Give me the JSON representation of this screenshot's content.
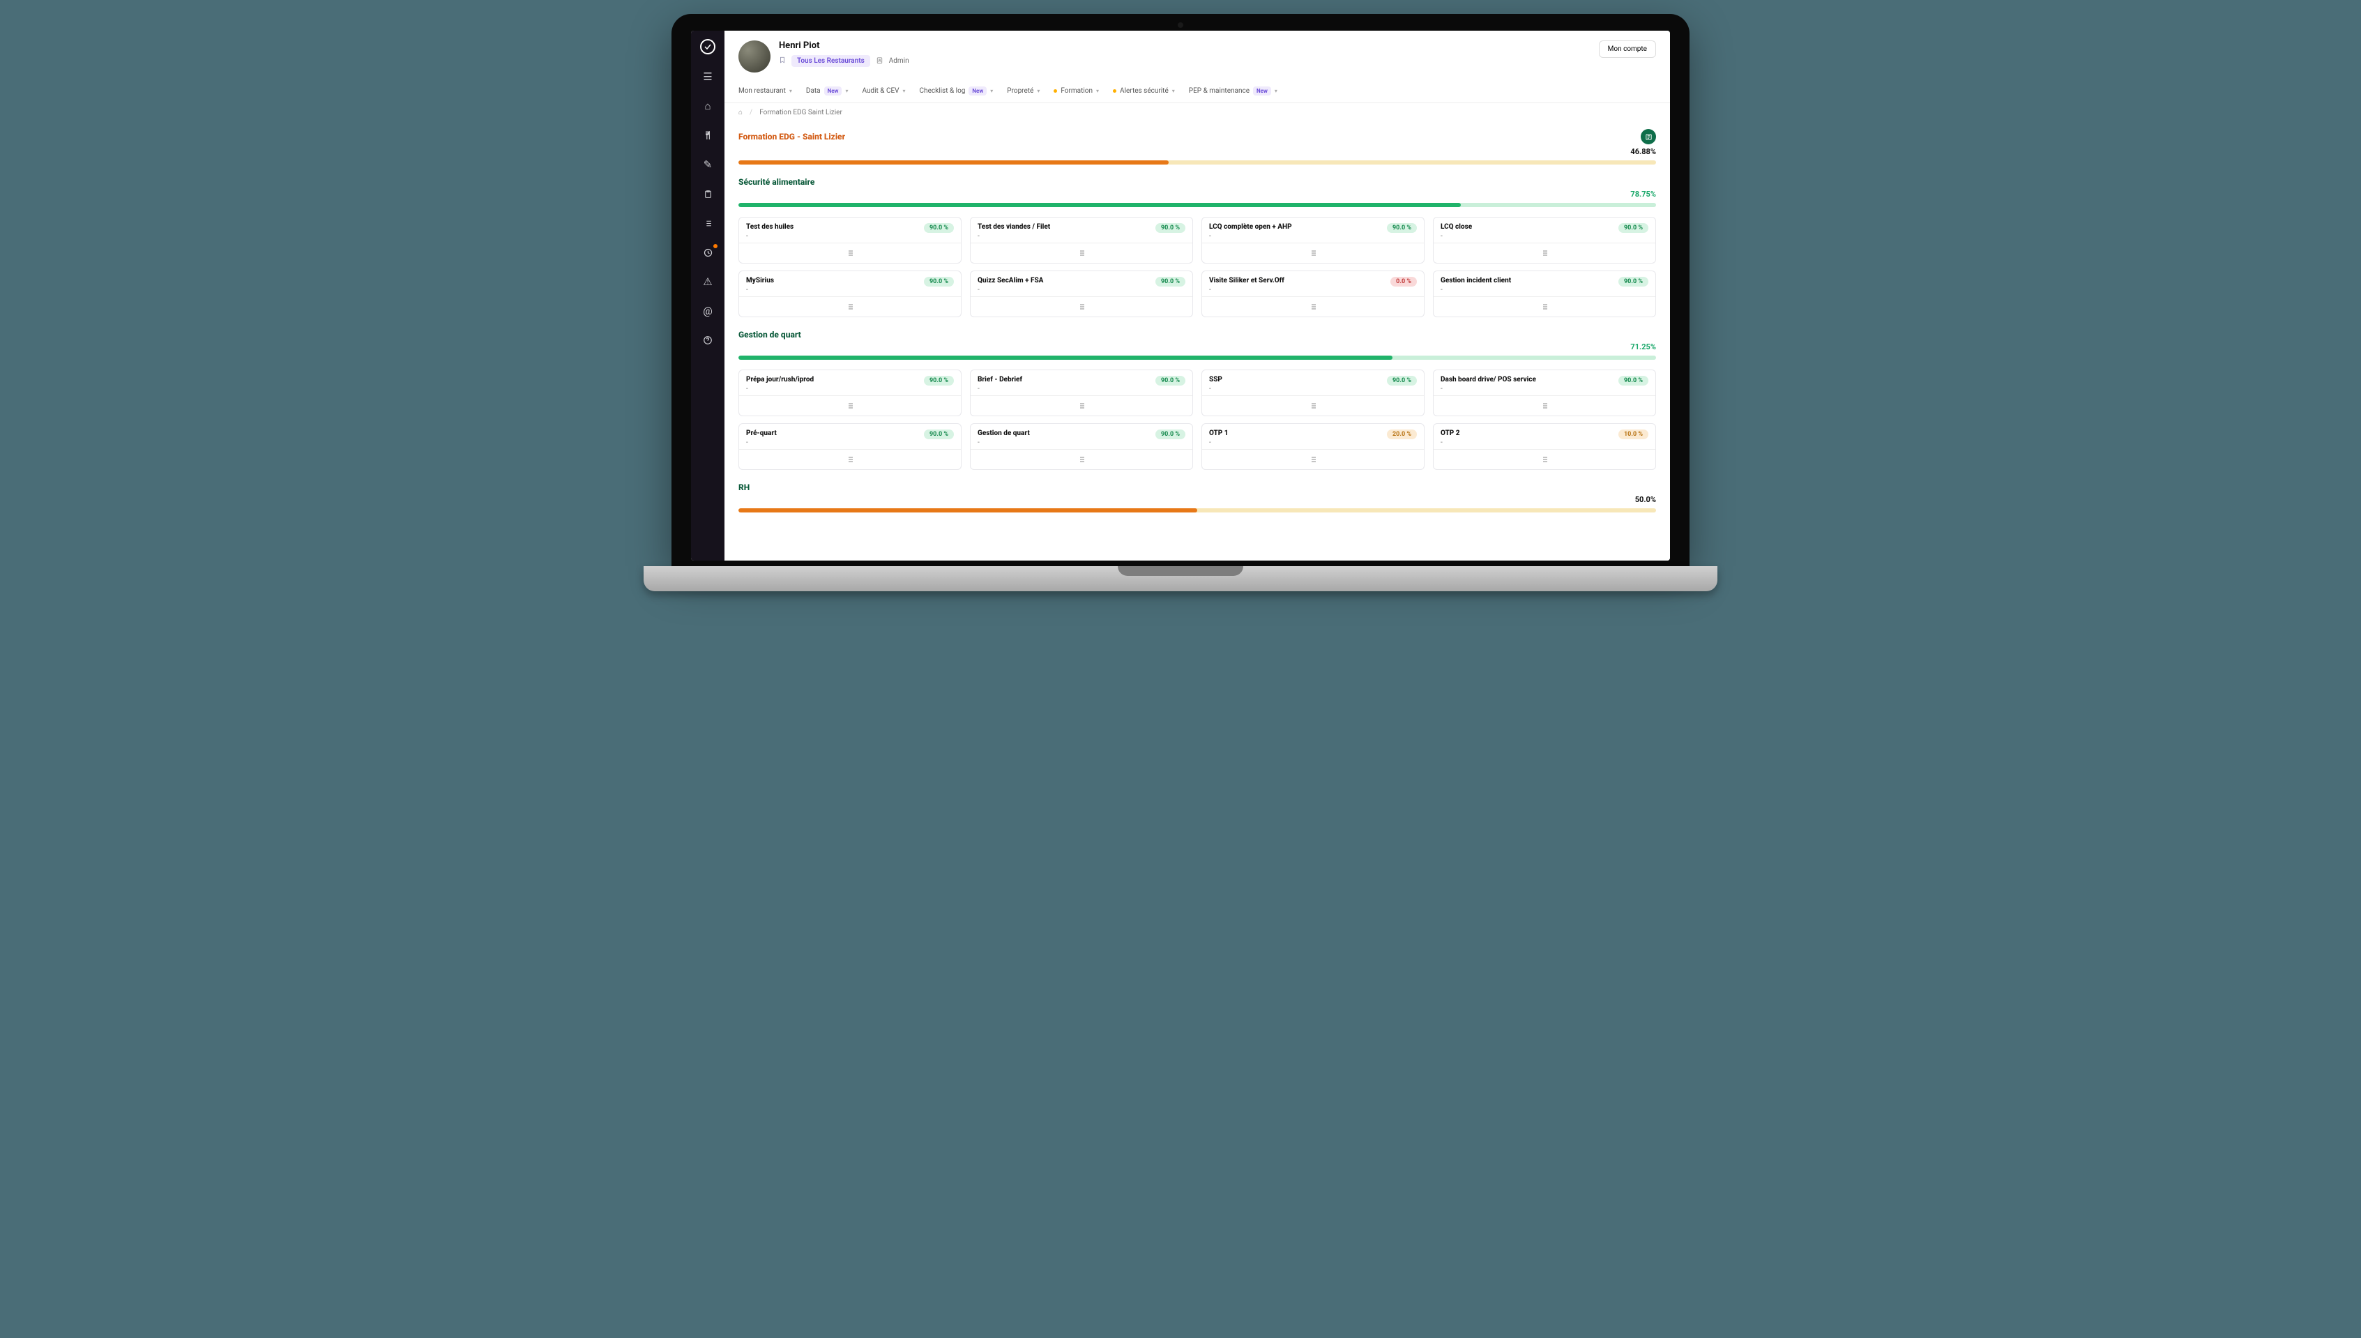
{
  "user": {
    "name": "Henri Piot",
    "restaurant_label": "Tous Les Restaurants",
    "role": "Admin"
  },
  "header": {
    "account_btn": "Mon compte"
  },
  "nav": {
    "items": [
      {
        "label": "Mon restaurant",
        "new": false,
        "dot": false
      },
      {
        "label": "Data",
        "new": true,
        "dot": false
      },
      {
        "label": "Audit & CEV",
        "new": false,
        "dot": false
      },
      {
        "label": "Checklist & log",
        "new": true,
        "dot": false
      },
      {
        "label": "Propreté",
        "new": false,
        "dot": false
      },
      {
        "label": "Formation",
        "new": false,
        "dot": true
      },
      {
        "label": "Alertes sécurité",
        "new": false,
        "dot": true
      },
      {
        "label": "PEP & maintenance",
        "new": true,
        "dot": false
      }
    ],
    "new_badge_text": "New"
  },
  "breadcrumb": {
    "page": "Formation EDG Saint Lizier"
  },
  "page_section": {
    "title": "Formation EDG - Saint Lizier",
    "pct_label": "46.88%",
    "progress_fill_pct": 46.88,
    "rail_bg": "#f7e7b8",
    "fill_color": "#e77817"
  },
  "sections": [
    {
      "title": "Sécurité alimentaire",
      "pct_label": "78.75%",
      "pct_class": "green",
      "progress_fill_pct": 78.75,
      "rail_bg": "#c9efd9",
      "fill_color": "#20b36a",
      "cards": [
        {
          "title": "Test des huiles",
          "sub": "-",
          "score": "90.0 %",
          "score_class": "green"
        },
        {
          "title": "Test des viandes / Filet",
          "sub": "-",
          "score": "90.0 %",
          "score_class": "green"
        },
        {
          "title": "LCQ complète open + AHP",
          "sub": "-",
          "score": "90.0 %",
          "score_class": "green"
        },
        {
          "title": "LCQ close",
          "sub": "-",
          "score": "90.0 %",
          "score_class": "green"
        },
        {
          "title": "MySirius",
          "sub": "-",
          "score": "90.0 %",
          "score_class": "green"
        },
        {
          "title": "Quizz SecAlim + FSA",
          "sub": "-",
          "score": "90.0 %",
          "score_class": "green"
        },
        {
          "title": "Visite Siliker et Serv.Off",
          "sub": "-",
          "score": "0.0 %",
          "score_class": "red"
        },
        {
          "title": "Gestion incident client",
          "sub": "-",
          "score": "90.0 %",
          "score_class": "green"
        }
      ]
    },
    {
      "title": "Gestion de quart",
      "pct_label": "71.25%",
      "pct_class": "green",
      "progress_fill_pct": 71.25,
      "rail_bg": "#c9efd9",
      "fill_color": "#20b36a",
      "cards": [
        {
          "title": "Prépa jour/rush/iprod",
          "sub": "-",
          "score": "90.0 %",
          "score_class": "green"
        },
        {
          "title": "Brief - Debrief",
          "sub": "-",
          "score": "90.0 %",
          "score_class": "green"
        },
        {
          "title": "SSP",
          "sub": "-",
          "score": "90.0 %",
          "score_class": "green"
        },
        {
          "title": "Dash board drive/ POS service",
          "sub": "-",
          "score": "90.0 %",
          "score_class": "green"
        },
        {
          "title": "Pré-quart",
          "sub": "-",
          "score": "90.0 %",
          "score_class": "green"
        },
        {
          "title": "Gestion de quart",
          "sub": "-",
          "score": "90.0 %",
          "score_class": "green"
        },
        {
          "title": "OTP 1",
          "sub": "-",
          "score": "20.0 %",
          "score_class": "amber"
        },
        {
          "title": "OTP 2",
          "sub": "-",
          "score": "10.0 %",
          "score_class": "amber"
        }
      ]
    },
    {
      "title": "RH",
      "pct_label": "50.0%",
      "pct_class": "black",
      "progress_fill_pct": 50,
      "rail_bg": "#f7e7b8",
      "fill_color": "#e77817",
      "cards": []
    }
  ],
  "colors": {
    "sidebar_bg": "#16121c",
    "badge_bg": "#efeafc",
    "badge_fg": "#6a4bd8"
  }
}
